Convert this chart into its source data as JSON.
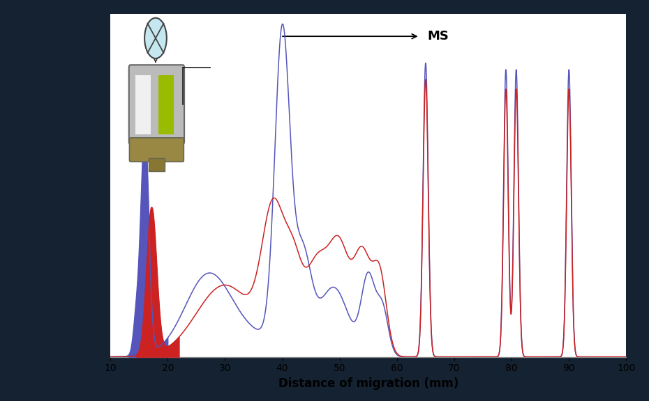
{
  "bg_color": "#152232",
  "plot_bg": "#ffffff",
  "xlabel": "Distance of migration (mm)",
  "xlabel_fontsize": 12,
  "xlabel_fontweight": "bold",
  "xlim": [
    10,
    100
  ],
  "ylim": [
    0,
    1.05
  ],
  "xticks": [
    10,
    20,
    30,
    40,
    50,
    60,
    70,
    80,
    90,
    100
  ],
  "blue_color": "#5555bb",
  "red_color": "#cc2222",
  "ms_text": "MS",
  "ms_fontsize": 13,
  "ms_fontweight": "bold",
  "figsize": [
    9.3,
    5.76
  ],
  "dpi": 100
}
